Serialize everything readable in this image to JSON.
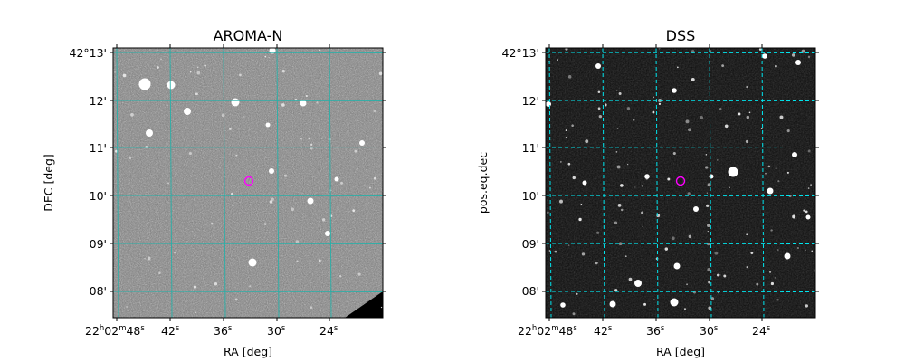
{
  "chart_data": [
    {
      "type": "heatmap",
      "title": "AROMA-N",
      "xlabel": "RA [deg]",
      "ylabel": "DEC [deg]",
      "grid": true,
      "grid_color": "#20b2aa",
      "image_style": "grey noise field",
      "x_ticks": [
        {
          "prefix": "22",
          "h": "h",
          "mid": "02",
          "m": "m",
          "value": "48",
          "s": "s"
        },
        {
          "value": "42",
          "s": "s"
        },
        {
          "value": "36",
          "s": "s"
        },
        {
          "value": "30",
          "s": "s"
        },
        {
          "value": "24",
          "s": "s"
        }
      ],
      "y_ticks": [
        "42°13'",
        "12'",
        "11'",
        "10'",
        "09'",
        "08'"
      ],
      "target_marker": {
        "color": "#ff00ff",
        "ra": "22h02m32.6s",
        "dec": "42°10.3'"
      }
    },
    {
      "type": "heatmap",
      "title": "DSS",
      "xlabel": "RA [deg]",
      "ylabel": "pos.eq.dec",
      "grid": true,
      "grid_color": "#00e5ee",
      "image_style": "black sky field",
      "x_ticks": [
        {
          "prefix": "22",
          "h": "h",
          "mid": "02",
          "m": "m",
          "value": "48",
          "s": "s"
        },
        {
          "value": "42",
          "s": "s"
        },
        {
          "value": "36",
          "s": "s"
        },
        {
          "value": "30",
          "s": "s"
        },
        {
          "value": "24",
          "s": "s"
        }
      ],
      "y_ticks": [
        "42°13'",
        "12'",
        "11'",
        "10'",
        "09'",
        "08'"
      ],
      "target_marker": {
        "color": "#ff00ff",
        "ra": "22h02m32.6s",
        "dec": "42°10.3'"
      }
    }
  ]
}
